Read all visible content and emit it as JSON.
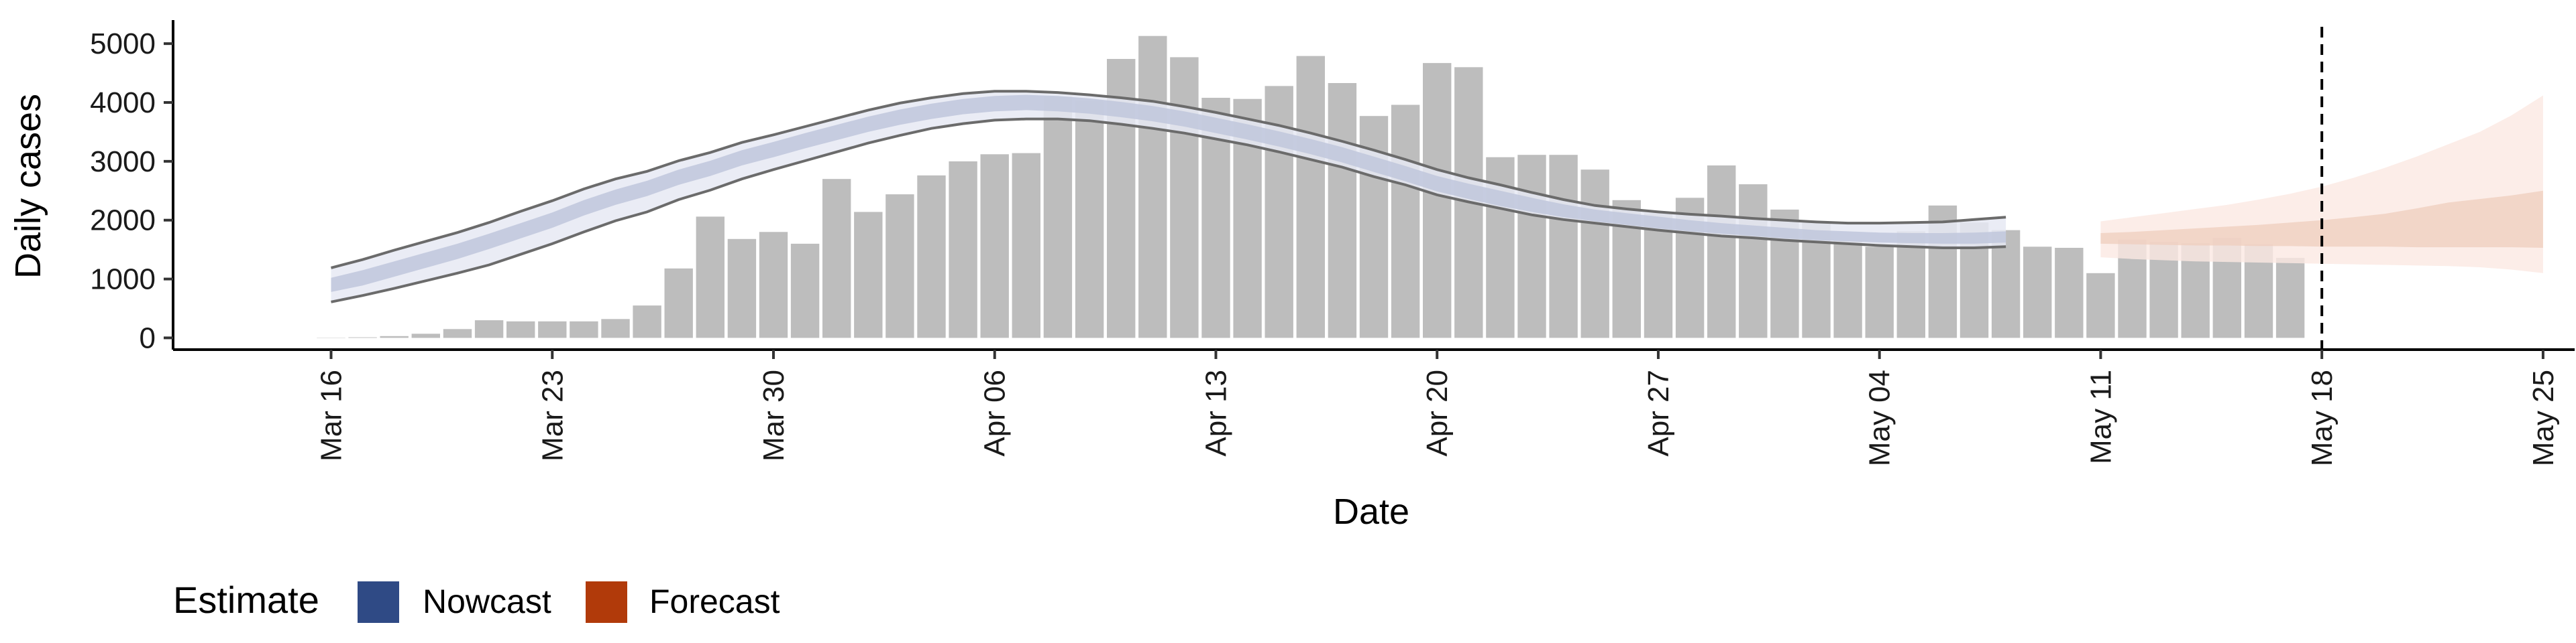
{
  "chart_data": {
    "type": "bar",
    "xlabel": "Date",
    "ylabel": "Daily cases",
    "ylim": [
      -200,
      5400
    ],
    "y_ticks": [
      "0",
      "1000",
      "2000",
      "3000",
      "4000",
      "5000"
    ],
    "x_range": [
      "2020-03-11",
      "2020-05-26"
    ],
    "x_ticks": [
      {
        "date": "2020-03-16",
        "label": "Mar 16"
      },
      {
        "date": "2020-03-23",
        "label": "Mar 23"
      },
      {
        "date": "2020-03-30",
        "label": "Mar 30"
      },
      {
        "date": "2020-04-06",
        "label": "Apr 06"
      },
      {
        "date": "2020-04-13",
        "label": "Apr 13"
      },
      {
        "date": "2020-04-20",
        "label": "Apr 20"
      },
      {
        "date": "2020-04-27",
        "label": "Apr 27"
      },
      {
        "date": "2020-05-04",
        "label": "May 04"
      },
      {
        "date": "2020-05-11",
        "label": "May 11"
      },
      {
        "date": "2020-05-18",
        "label": "May 18"
      },
      {
        "date": "2020-05-25",
        "label": "May 25"
      }
    ],
    "grid": false,
    "vline_date": "2020-05-18",
    "bars": {
      "start_date": "2020-03-16",
      "values": [
        5,
        10,
        30,
        70,
        150,
        300,
        280,
        280,
        280,
        320,
        550,
        1180,
        2060,
        1680,
        1800,
        1600,
        2700,
        2140,
        2440,
        2760,
        3000,
        3120,
        3140,
        4100,
        4030,
        4740,
        5130,
        4770,
        4080,
        4060,
        4280,
        4790,
        4330,
        3770,
        3960,
        4670,
        4600,
        3070,
        3110,
        3110,
        2860,
        2340,
        2120,
        2380,
        2930,
        2610,
        2180,
        1960,
        1660,
        1550,
        1810,
        2250,
        1960,
        1830,
        1550,
        1530,
        1100,
        1670,
        1630,
        1610,
        1700,
        1590,
        1360
      ]
    },
    "series": [
      {
        "name": "Nowcast",
        "start_date": "2020-03-16",
        "median": [
          900,
          1020,
          1170,
          1320,
          1470,
          1640,
          1820,
          2000,
          2210,
          2390,
          2540,
          2730,
          2880,
          3060,
          3200,
          3350,
          3490,
          3630,
          3750,
          3850,
          3930,
          3980,
          4000,
          3980,
          3940,
          3880,
          3810,
          3720,
          3610,
          3500,
          3380,
          3250,
          3110,
          2950,
          2790,
          2620,
          2490,
          2370,
          2260,
          2160,
          2080,
          2020,
          1960,
          1900,
          1860,
          1820,
          1780,
          1740,
          1720,
          1700,
          1690,
          1680,
          1690,
          1710
        ],
        "inner_lower": [
          780,
          890,
          1040,
          1190,
          1340,
          1510,
          1690,
          1870,
          2080,
          2260,
          2410,
          2600,
          2750,
          2930,
          3070,
          3220,
          3360,
          3500,
          3620,
          3720,
          3800,
          3850,
          3870,
          3850,
          3810,
          3750,
          3680,
          3590,
          3480,
          3370,
          3250,
          3120,
          2980,
          2820,
          2660,
          2490,
          2360,
          2240,
          2140,
          2050,
          1980,
          1920,
          1860,
          1810,
          1770,
          1730,
          1690,
          1660,
          1640,
          1620,
          1610,
          1600,
          1600,
          1620
        ],
        "inner_upper": [
          1020,
          1150,
          1300,
          1450,
          1600,
          1770,
          1950,
          2130,
          2340,
          2520,
          2670,
          2860,
          3010,
          3190,
          3330,
          3480,
          3620,
          3760,
          3880,
          3980,
          4060,
          4110,
          4130,
          4110,
          4070,
          4010,
          3940,
          3850,
          3740,
          3630,
          3510,
          3380,
          3240,
          3080,
          2920,
          2750,
          2620,
          2500,
          2380,
          2270,
          2180,
          2120,
          2060,
          2000,
          1950,
          1910,
          1870,
          1830,
          1810,
          1790,
          1780,
          1780,
          1790,
          1810
        ],
        "lower": [
          610,
          720,
          840,
          970,
          1100,
          1240,
          1420,
          1600,
          1800,
          1990,
          2140,
          2350,
          2510,
          2700,
          2860,
          3010,
          3160,
          3310,
          3440,
          3560,
          3640,
          3700,
          3720,
          3720,
          3690,
          3630,
          3560,
          3480,
          3380,
          3280,
          3160,
          3030,
          2900,
          2740,
          2600,
          2430,
          2310,
          2200,
          2090,
          2010,
          1950,
          1890,
          1830,
          1780,
          1730,
          1700,
          1660,
          1630,
          1600,
          1570,
          1550,
          1530,
          1530,
          1550
        ],
        "upper": [
          1190,
          1330,
          1490,
          1640,
          1790,
          1960,
          2150,
          2330,
          2530,
          2700,
          2830,
          3010,
          3150,
          3320,
          3450,
          3590,
          3730,
          3870,
          3990,
          4080,
          4150,
          4190,
          4190,
          4170,
          4130,
          4080,
          4020,
          3930,
          3830,
          3720,
          3610,
          3480,
          3340,
          3190,
          3030,
          2860,
          2720,
          2600,
          2470,
          2350,
          2250,
          2190,
          2140,
          2100,
          2070,
          2030,
          2000,
          1970,
          1950,
          1950,
          1960,
          1970,
          2010,
          2050
        ]
      },
      {
        "name": "Forecast",
        "start_date": "2020-05-11",
        "inner_lower": [
          1600,
          1590,
          1580,
          1570,
          1570,
          1560,
          1560,
          1550,
          1550,
          1550,
          1540,
          1540,
          1540,
          1540,
          1530
        ],
        "inner_upper": [
          1780,
          1800,
          1830,
          1860,
          1890,
          1920,
          1960,
          2000,
          2050,
          2110,
          2200,
          2300,
          2360,
          2420,
          2500
        ],
        "lower": [
          1370,
          1340,
          1320,
          1300,
          1290,
          1280,
          1270,
          1260,
          1250,
          1240,
          1230,
          1220,
          1200,
          1160,
          1100
        ],
        "upper": [
          1980,
          2050,
          2120,
          2190,
          2260,
          2350,
          2450,
          2570,
          2720,
          2890,
          3080,
          3290,
          3500,
          3780,
          4120
        ]
      }
    ],
    "legend": {
      "title": "Estimate",
      "items": [
        {
          "label": "Nowcast",
          "color": "#2f4a85"
        },
        {
          "label": "Forecast",
          "color": "#b13a0a"
        }
      ]
    },
    "colors": {
      "bar": "#bdbdbd",
      "nowcast_outer": "#e6e9f3",
      "nowcast_inner": "#bfc7dc",
      "nowcast_line": "#6b6b6b",
      "forecast_outer": "#fbe9e2",
      "forecast_inner": "#efcdbd",
      "axis": "#000000"
    }
  }
}
